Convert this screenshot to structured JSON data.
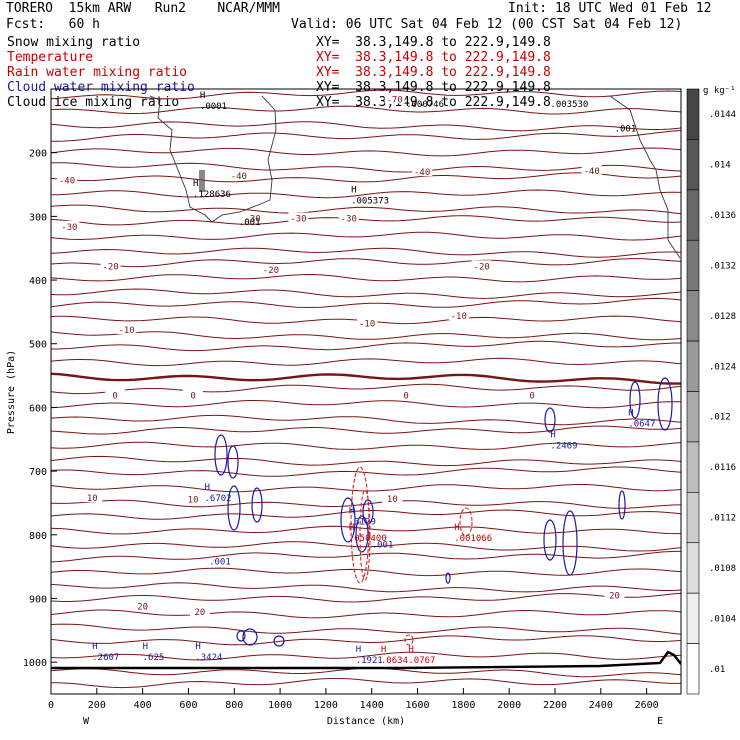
{
  "header": {
    "model": "TORERO  15km ARW   Run2    NCAR/MMM",
    "init": "Init: 18 UTC Wed 01 Feb 12",
    "fcst": "Fcst:   60 h",
    "valid": "Valid: 06 UTC Sat 04 Feb 12 (00 CST Sat 04 Feb 12)"
  },
  "fields": [
    {
      "name": "Snow mixing ratio",
      "color": "#000000",
      "xy": "XY=  38.3,149.8 to 222.9,149.8"
    },
    {
      "name": "Temperature",
      "color": "#cc0000",
      "xy": "XY=  38.3,149.8 to 222.9,149.8"
    },
    {
      "name": "Rain water mixing ratio",
      "color": "#cc0000",
      "xy": "XY=  38.3,149.8 to 222.9,149.8"
    },
    {
      "name": "Cloud water mixing ratio",
      "color": "#1a1aa6",
      "xy": "XY=  38.3,149.8 to 222.9,149.8"
    },
    {
      "name": "Cloud ice mixing ratio",
      "color": "#000000",
      "xy": "XY=  38.3,149.8 to 222.9,149.8"
    }
  ],
  "colorbar": {
    "unit": "g kg⁻¹",
    "labels": [
      ".0144",
      ".014",
      ".0136",
      ".0132",
      ".0128",
      ".0124",
      ".012",
      ".0116",
      ".0112",
      ".0108",
      ".0104",
      ".01"
    ]
  },
  "axis_side_labels": {
    "west": "W",
    "east": "E"
  },
  "chart_data": {
    "type": "contour",
    "xlabel": "Distance (km)",
    "ylabel": "Pressure (hPa)",
    "xlim": [
      0,
      2750
    ],
    "ylim": [
      1050,
      100
    ],
    "xticks": [
      0,
      200,
      400,
      600,
      800,
      1000,
      1200,
      1400,
      1600,
      1800,
      2000,
      2200,
      2400,
      2600
    ],
    "yticks": [
      200,
      300,
      400,
      500,
      600,
      700,
      800,
      900,
      1000
    ],
    "yticks_drawn": [
      100,
      200,
      300,
      400,
      500,
      600,
      700,
      800,
      900,
      1000
    ],
    "temperature_labels": [
      {
        "text": "-70",
        "x": 1500,
        "p": 118
      },
      {
        "text": "-40",
        "x": 70,
        "p": 245
      },
      {
        "text": "-40",
        "x": 820,
        "p": 238
      },
      {
        "text": "-40",
        "x": 1620,
        "p": 232
      },
      {
        "text": "-40",
        "x": 2360,
        "p": 230
      },
      {
        "text": "-30",
        "x": 80,
        "p": 318
      },
      {
        "text": "-30",
        "x": 880,
        "p": 305
      },
      {
        "text": "-30",
        "x": 1080,
        "p": 305
      },
      {
        "text": "-30",
        "x": 1300,
        "p": 305
      },
      {
        "text": "-20",
        "x": 260,
        "p": 380
      },
      {
        "text": "-20",
        "x": 960,
        "p": 386
      },
      {
        "text": "-20",
        "x": 1880,
        "p": 380
      },
      {
        "text": "-10",
        "x": 330,
        "p": 480
      },
      {
        "text": "-10",
        "x": 1380,
        "p": 470
      },
      {
        "text": "-10",
        "x": 1780,
        "p": 458
      },
      {
        "text": "0",
        "x": 280,
        "p": 583
      },
      {
        "text": "0",
        "x": 620,
        "p": 583
      },
      {
        "text": "0",
        "x": 1550,
        "p": 583
      },
      {
        "text": "0",
        "x": 2100,
        "p": 583
      },
      {
        "text": "10",
        "x": 180,
        "p": 744
      },
      {
        "text": "10",
        "x": 620,
        "p": 746
      },
      {
        "text": "10",
        "x": 1490,
        "p": 745
      },
      {
        "text": "20",
        "x": 400,
        "p": 914
      },
      {
        "text": "20",
        "x": 650,
        "p": 923
      },
      {
        "text": "20",
        "x": 2460,
        "p": 897
      }
    ],
    "maxima": [
      {
        "text": "H .128636",
        "x": 620,
        "p": 268,
        "field": "snow"
      },
      {
        "text": "H .005373",
        "x": 1310,
        "p": 278,
        "field": "snow"
      },
      {
        "text": ".000746",
        "x": 1550,
        "p": 127,
        "field": "snow"
      },
      {
        "text": ".003530",
        "x": 2180,
        "p": 127,
        "field": "snow"
      },
      {
        "text": ".001",
        "x": 2460,
        "p": 165,
        "field": "snow"
      },
      {
        "text": ".001",
        "x": 820,
        "p": 312,
        "field": "snow"
      },
      {
        "text": "H .6702",
        "x": 670,
        "p": 745,
        "field": "cloud"
      },
      {
        "text": ".001",
        "x": 690,
        "p": 845,
        "field": "cloud"
      },
      {
        "text": "H .3129",
        "x": 1300,
        "p": 782,
        "field": "cloud"
      },
      {
        "text": ".001",
        "x": 1400,
        "p": 818,
        "field": "cloud"
      },
      {
        "text": "H .2469",
        "x": 2180,
        "p": 663,
        "field": "cloud"
      },
      {
        "text": "H .0647",
        "x": 2520,
        "p": 628,
        "field": "cloud"
      },
      {
        "text": "H .2607",
        "x": 180,
        "p": 995,
        "field": "cloud"
      },
      {
        "text": "H .625",
        "x": 400,
        "p": 995,
        "field": "cloud"
      },
      {
        "text": "H .3424",
        "x": 630,
        "p": 995,
        "field": "cloud"
      },
      {
        "text": "H .1921",
        "x": 1330,
        "p": 1000,
        "field": "cloud"
      },
      {
        "text": "H .0767",
        "x": 1560,
        "p": 1000,
        "field": "rain"
      },
      {
        "text": "H .0634",
        "x": 1440,
        "p": 1000,
        "field": "rain"
      },
      {
        "text": "H .050400",
        "x": 1300,
        "p": 808,
        "field": "rain"
      },
      {
        "text": "H .001066",
        "x": 1760,
        "p": 808,
        "field": "rain"
      },
      {
        "text": "H .0001",
        "x": 650,
        "p": 130,
        "field": "snow"
      }
    ]
  }
}
